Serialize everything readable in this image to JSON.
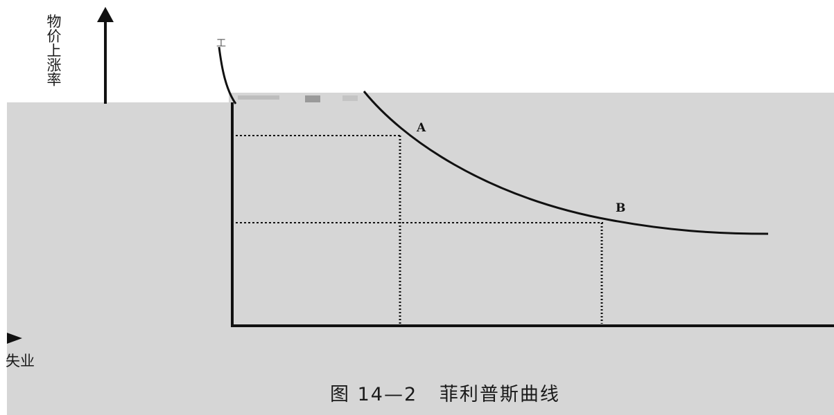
{
  "diagram": {
    "y_axis_label": "物价上涨率",
    "x_axis_label": "失业",
    "point_a_label": "A",
    "point_b_label": "B",
    "caption": "图 14—2   菲利普斯曲线",
    "scan_mark": "工"
  },
  "colors": {
    "ink": "#111111",
    "panel": "#d6d6d6"
  }
}
